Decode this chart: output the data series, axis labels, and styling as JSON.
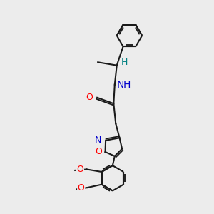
{
  "bg_color": "#ececec",
  "bond_color": "#1a1a1a",
  "bond_width": 1.5,
  "dbo": 0.022,
  "atom_colors": {
    "O": "#ff0000",
    "N": "#0000cc",
    "H_teal": "#008080",
    "C": "#1a1a1a"
  },
  "figsize": [
    3.0,
    3.0
  ],
  "dpi": 100,
  "xlim": [
    0.2,
    2.8
  ],
  "ylim": [
    0.1,
    3.1
  ]
}
